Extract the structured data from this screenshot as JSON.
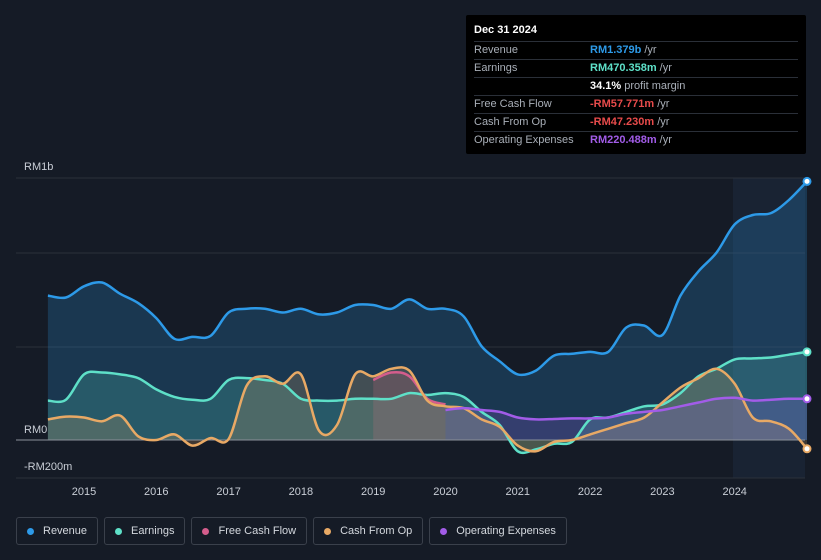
{
  "tooltip": {
    "date": "Dec 31 2024",
    "rows": [
      {
        "label": "Revenue",
        "value": "RM1.379b",
        "unit": "/yr",
        "color": "#2d9ae8"
      },
      {
        "label": "Earnings",
        "value": "RM470.358m",
        "unit": "/yr",
        "color": "#5ee0c8"
      },
      {
        "label": "",
        "value": "34.1%",
        "unit": "profit margin",
        "color": "#ffffff"
      },
      {
        "label": "Free Cash Flow",
        "value": "-RM57.771m",
        "unit": "/yr",
        "color": "#e84b4b"
      },
      {
        "label": "Cash From Op",
        "value": "-RM47.230m",
        "unit": "/yr",
        "color": "#e84b4b"
      },
      {
        "label": "Operating Expenses",
        "value": "RM220.488m",
        "unit": "/yr",
        "color": "#a25ce8"
      }
    ]
  },
  "legend": [
    {
      "label": "Revenue",
      "color": "#2d9ae8"
    },
    {
      "label": "Earnings",
      "color": "#5ee0c8"
    },
    {
      "label": "Free Cash Flow",
      "color": "#d45d8c"
    },
    {
      "label": "Cash From Op",
      "color": "#e8a965"
    },
    {
      "label": "Operating Expenses",
      "color": "#a25ce8"
    }
  ],
  "chart_data": {
    "type": "area",
    "x_tick_labels": [
      "2015",
      "2016",
      "2017",
      "2018",
      "2019",
      "2020",
      "2021",
      "2022",
      "2023",
      "2024"
    ],
    "y_tick_labels": [
      "RM1b",
      "RM0",
      "-RM200m"
    ],
    "ylim": [
      -200,
      1400
    ],
    "y_unit": "RM millions",
    "series": [
      {
        "name": "Revenue",
        "color": "#2d9ae8",
        "points": [
          [
            2014.5,
            770
          ],
          [
            2014.75,
            760
          ],
          [
            2015.0,
            820
          ],
          [
            2015.25,
            840
          ],
          [
            2015.5,
            780
          ],
          [
            2015.75,
            730
          ],
          [
            2016.0,
            650
          ],
          [
            2016.25,
            540
          ],
          [
            2016.5,
            550
          ],
          [
            2016.75,
            555
          ],
          [
            2017.0,
            680
          ],
          [
            2017.25,
            700
          ],
          [
            2017.5,
            700
          ],
          [
            2017.75,
            680
          ],
          [
            2018.0,
            700
          ],
          [
            2018.25,
            670
          ],
          [
            2018.5,
            680
          ],
          [
            2018.75,
            720
          ],
          [
            2019.0,
            720
          ],
          [
            2019.25,
            700
          ],
          [
            2019.5,
            750
          ],
          [
            2019.75,
            700
          ],
          [
            2020.0,
            700
          ],
          [
            2020.25,
            660
          ],
          [
            2020.5,
            500
          ],
          [
            2020.75,
            420
          ],
          [
            2021.0,
            350
          ],
          [
            2021.25,
            370
          ],
          [
            2021.5,
            450
          ],
          [
            2021.75,
            460
          ],
          [
            2022.0,
            470
          ],
          [
            2022.25,
            470
          ],
          [
            2022.5,
            600
          ],
          [
            2022.75,
            610
          ],
          [
            2023.0,
            560
          ],
          [
            2023.25,
            770
          ],
          [
            2023.5,
            900
          ],
          [
            2023.75,
            1000
          ],
          [
            2024.0,
            1150
          ],
          [
            2024.25,
            1200
          ],
          [
            2024.5,
            1210
          ],
          [
            2024.75,
            1280
          ],
          [
            2025.0,
            1379
          ]
        ]
      },
      {
        "name": "Earnings",
        "color": "#5ee0c8",
        "points": [
          [
            2014.5,
            210
          ],
          [
            2014.75,
            215
          ],
          [
            2015.0,
            350
          ],
          [
            2015.25,
            360
          ],
          [
            2015.5,
            350
          ],
          [
            2015.75,
            330
          ],
          [
            2016.0,
            270
          ],
          [
            2016.25,
            230
          ],
          [
            2016.5,
            215
          ],
          [
            2016.75,
            220
          ],
          [
            2017.0,
            320
          ],
          [
            2017.25,
            330
          ],
          [
            2017.5,
            320
          ],
          [
            2017.75,
            300
          ],
          [
            2018.0,
            220
          ],
          [
            2018.25,
            210
          ],
          [
            2018.5,
            210
          ],
          [
            2018.75,
            220
          ],
          [
            2019.0,
            220
          ],
          [
            2019.25,
            220
          ],
          [
            2019.5,
            250
          ],
          [
            2019.75,
            240
          ],
          [
            2020.0,
            250
          ],
          [
            2020.25,
            230
          ],
          [
            2020.5,
            150
          ],
          [
            2020.75,
            80
          ],
          [
            2021.0,
            -60
          ],
          [
            2021.25,
            -50
          ],
          [
            2021.5,
            -20
          ],
          [
            2021.75,
            -10
          ],
          [
            2022.0,
            110
          ],
          [
            2022.25,
            120
          ],
          [
            2022.5,
            150
          ],
          [
            2022.75,
            180
          ],
          [
            2023.0,
            190
          ],
          [
            2023.25,
            250
          ],
          [
            2023.5,
            340
          ],
          [
            2023.75,
            380
          ],
          [
            2024.0,
            430
          ],
          [
            2024.25,
            435
          ],
          [
            2024.5,
            440
          ],
          [
            2024.75,
            455
          ],
          [
            2025.0,
            470
          ]
        ]
      },
      {
        "name": "Free Cash Flow",
        "color": "#d45d8c",
        "points": [
          [
            2019.0,
            320
          ],
          [
            2019.25,
            360
          ],
          [
            2019.5,
            340
          ],
          [
            2019.75,
            220
          ],
          [
            2020.0,
            190
          ]
        ]
      },
      {
        "name": "Cash From Op",
        "color": "#e8a965",
        "points": [
          [
            2014.5,
            110
          ],
          [
            2014.75,
            125
          ],
          [
            2015.0,
            120
          ],
          [
            2015.25,
            100
          ],
          [
            2015.5,
            130
          ],
          [
            2015.75,
            20
          ],
          [
            2016.0,
            0
          ],
          [
            2016.25,
            30
          ],
          [
            2016.5,
            -30
          ],
          [
            2016.75,
            10
          ],
          [
            2017.0,
            5
          ],
          [
            2017.25,
            290
          ],
          [
            2017.5,
            340
          ],
          [
            2017.75,
            300
          ],
          [
            2018.0,
            350
          ],
          [
            2018.25,
            50
          ],
          [
            2018.5,
            80
          ],
          [
            2018.75,
            350
          ],
          [
            2019.0,
            340
          ],
          [
            2019.25,
            380
          ],
          [
            2019.5,
            370
          ],
          [
            2019.75,
            210
          ],
          [
            2020.0,
            180
          ],
          [
            2020.25,
            170
          ],
          [
            2020.5,
            110
          ],
          [
            2020.75,
            70
          ],
          [
            2021.0,
            -30
          ],
          [
            2021.25,
            -60
          ],
          [
            2021.5,
            -10
          ],
          [
            2021.75,
            0
          ],
          [
            2022.0,
            30
          ],
          [
            2022.25,
            60
          ],
          [
            2022.5,
            90
          ],
          [
            2022.75,
            120
          ],
          [
            2023.0,
            200
          ],
          [
            2023.25,
            280
          ],
          [
            2023.5,
            330
          ],
          [
            2023.75,
            380
          ],
          [
            2024.0,
            300
          ],
          [
            2024.25,
            120
          ],
          [
            2024.5,
            100
          ],
          [
            2024.75,
            60
          ],
          [
            2025.0,
            -47
          ]
        ]
      },
      {
        "name": "Operating Expenses",
        "color": "#a25ce8",
        "points": [
          [
            2020.0,
            160
          ],
          [
            2020.25,
            170
          ],
          [
            2020.5,
            160
          ],
          [
            2020.75,
            150
          ],
          [
            2021.0,
            120
          ],
          [
            2021.25,
            110
          ],
          [
            2021.5,
            112
          ],
          [
            2021.75,
            115
          ],
          [
            2022.0,
            115
          ],
          [
            2022.25,
            120
          ],
          [
            2022.5,
            140
          ],
          [
            2022.75,
            150
          ],
          [
            2023.0,
            160
          ],
          [
            2023.25,
            180
          ],
          [
            2023.5,
            200
          ],
          [
            2023.75,
            220
          ],
          [
            2024.0,
            225
          ],
          [
            2024.25,
            210
          ],
          [
            2024.5,
            215
          ],
          [
            2024.75,
            220
          ],
          [
            2025.0,
            220
          ]
        ]
      }
    ]
  }
}
